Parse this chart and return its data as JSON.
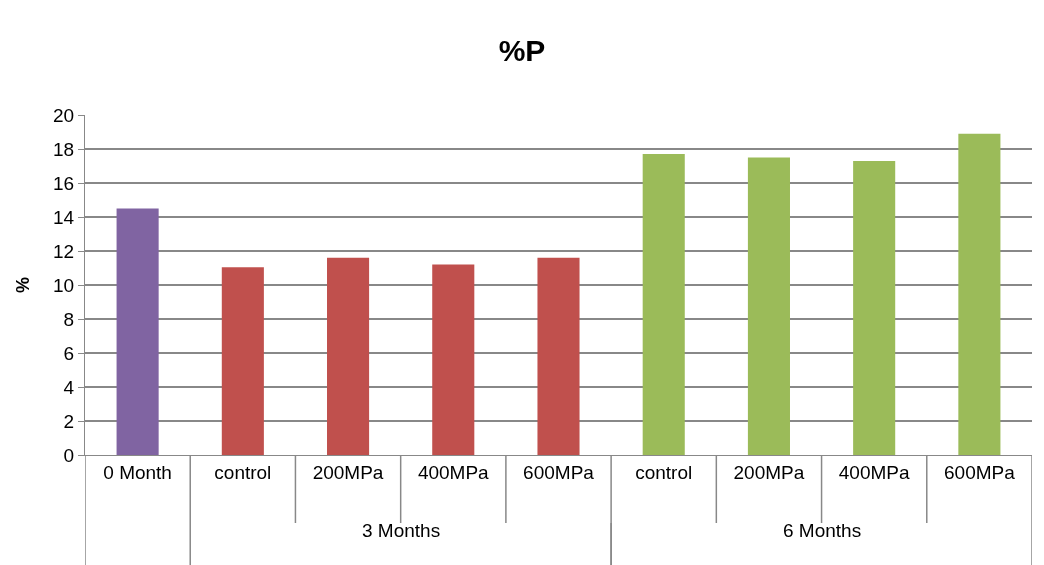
{
  "chart_data": {
    "type": "bar",
    "title": "%P",
    "ylabel": "%",
    "categories": [
      "0 Month",
      "control",
      "200MPa",
      "400MPa",
      "600MPa",
      "control",
      "200MPa",
      "400MPa",
      "600MPa"
    ],
    "values": [
      14.5,
      11.05,
      11.6,
      11.2,
      11.6,
      17.7,
      17.5,
      17.3,
      18.9
    ],
    "colors": [
      "#8064a2",
      "#c0504d",
      "#c0504d",
      "#c0504d",
      "#c0504d",
      "#9bbb59",
      "#9bbb59",
      "#9bbb59",
      "#9bbb59"
    ],
    "annotations": [
      "3 Months",
      "6 Months"
    ],
    "ylim": [
      0,
      20
    ],
    "yticks": [
      0,
      2,
      4,
      6,
      8,
      10,
      12,
      14,
      16,
      18,
      20
    ],
    "grid": "y"
  }
}
